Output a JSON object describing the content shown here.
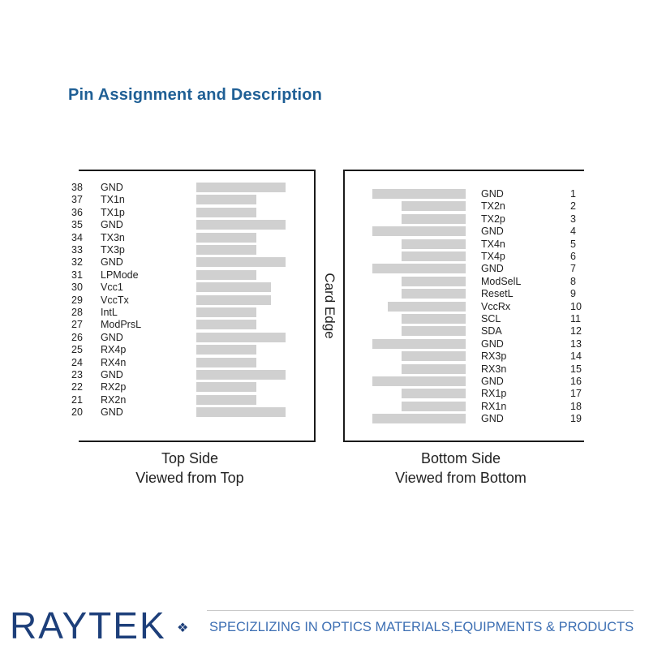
{
  "title": "Pin Assignment and Description",
  "card_edge_label": "Card Edge",
  "top_side": {
    "caption_line1": "Top Side",
    "caption_line2": "Viewed from Top",
    "pins": [
      {
        "num": "38",
        "name": "GND",
        "bar": "long"
      },
      {
        "num": "37",
        "name": "TX1n",
        "bar": "short"
      },
      {
        "num": "36",
        "name": "TX1p",
        "bar": "short"
      },
      {
        "num": "35",
        "name": "GND",
        "bar": "long"
      },
      {
        "num": "34",
        "name": "TX3n",
        "bar": "short"
      },
      {
        "num": "33",
        "name": "TX3p",
        "bar": "short"
      },
      {
        "num": "32",
        "name": "GND",
        "bar": "long"
      },
      {
        "num": "31",
        "name": "LPMode",
        "bar": "short"
      },
      {
        "num": "30",
        "name": "Vcc1",
        "bar": "medium"
      },
      {
        "num": "29",
        "name": "VccTx",
        "bar": "medium"
      },
      {
        "num": "28",
        "name": "IntL",
        "bar": "short"
      },
      {
        "num": "27",
        "name": "ModPrsL",
        "bar": "short"
      },
      {
        "num": "26",
        "name": "GND",
        "bar": "long"
      },
      {
        "num": "25",
        "name": "RX4p",
        "bar": "short"
      },
      {
        "num": "24",
        "name": "RX4n",
        "bar": "short"
      },
      {
        "num": "23",
        "name": "GND",
        "bar": "long"
      },
      {
        "num": "22",
        "name": "RX2p",
        "bar": "short"
      },
      {
        "num": "21",
        "name": "RX2n",
        "bar": "short"
      },
      {
        "num": "20",
        "name": "GND",
        "bar": "long"
      }
    ]
  },
  "bottom_side": {
    "caption_line1": "Bottom Side",
    "caption_line2": "Viewed from Bottom",
    "pins": [
      {
        "num": "1",
        "name": "GND",
        "bar": "long"
      },
      {
        "num": "2",
        "name": "TX2n",
        "bar": "short"
      },
      {
        "num": "3",
        "name": "TX2p",
        "bar": "short"
      },
      {
        "num": "4",
        "name": "GND",
        "bar": "long"
      },
      {
        "num": "5",
        "name": "TX4n",
        "bar": "short"
      },
      {
        "num": "6",
        "name": "TX4p",
        "bar": "short"
      },
      {
        "num": "7",
        "name": "GND",
        "bar": "long"
      },
      {
        "num": "8",
        "name": "ModSelL",
        "bar": "short"
      },
      {
        "num": "9",
        "name": "ResetL",
        "bar": "short"
      },
      {
        "num": "10",
        "name": "VccRx",
        "bar": "medium"
      },
      {
        "num": "11",
        "name": "SCL",
        "bar": "short"
      },
      {
        "num": "12",
        "name": "SDA",
        "bar": "short"
      },
      {
        "num": "13",
        "name": "GND",
        "bar": "long"
      },
      {
        "num": "14",
        "name": "RX3p",
        "bar": "short"
      },
      {
        "num": "15",
        "name": "RX3n",
        "bar": "short"
      },
      {
        "num": "16",
        "name": "GND",
        "bar": "long"
      },
      {
        "num": "17",
        "name": "RX1p",
        "bar": "short"
      },
      {
        "num": "18",
        "name": "RX1n",
        "bar": "short"
      },
      {
        "num": "19",
        "name": "GND",
        "bar": "long"
      }
    ]
  },
  "footer": {
    "logo": "RAYTEK",
    "logo_mark": "❖",
    "tagline": "SPECIZLIZING IN OPTICS  MATERIALS,EQUIPMENTS & PRODUCTS"
  }
}
